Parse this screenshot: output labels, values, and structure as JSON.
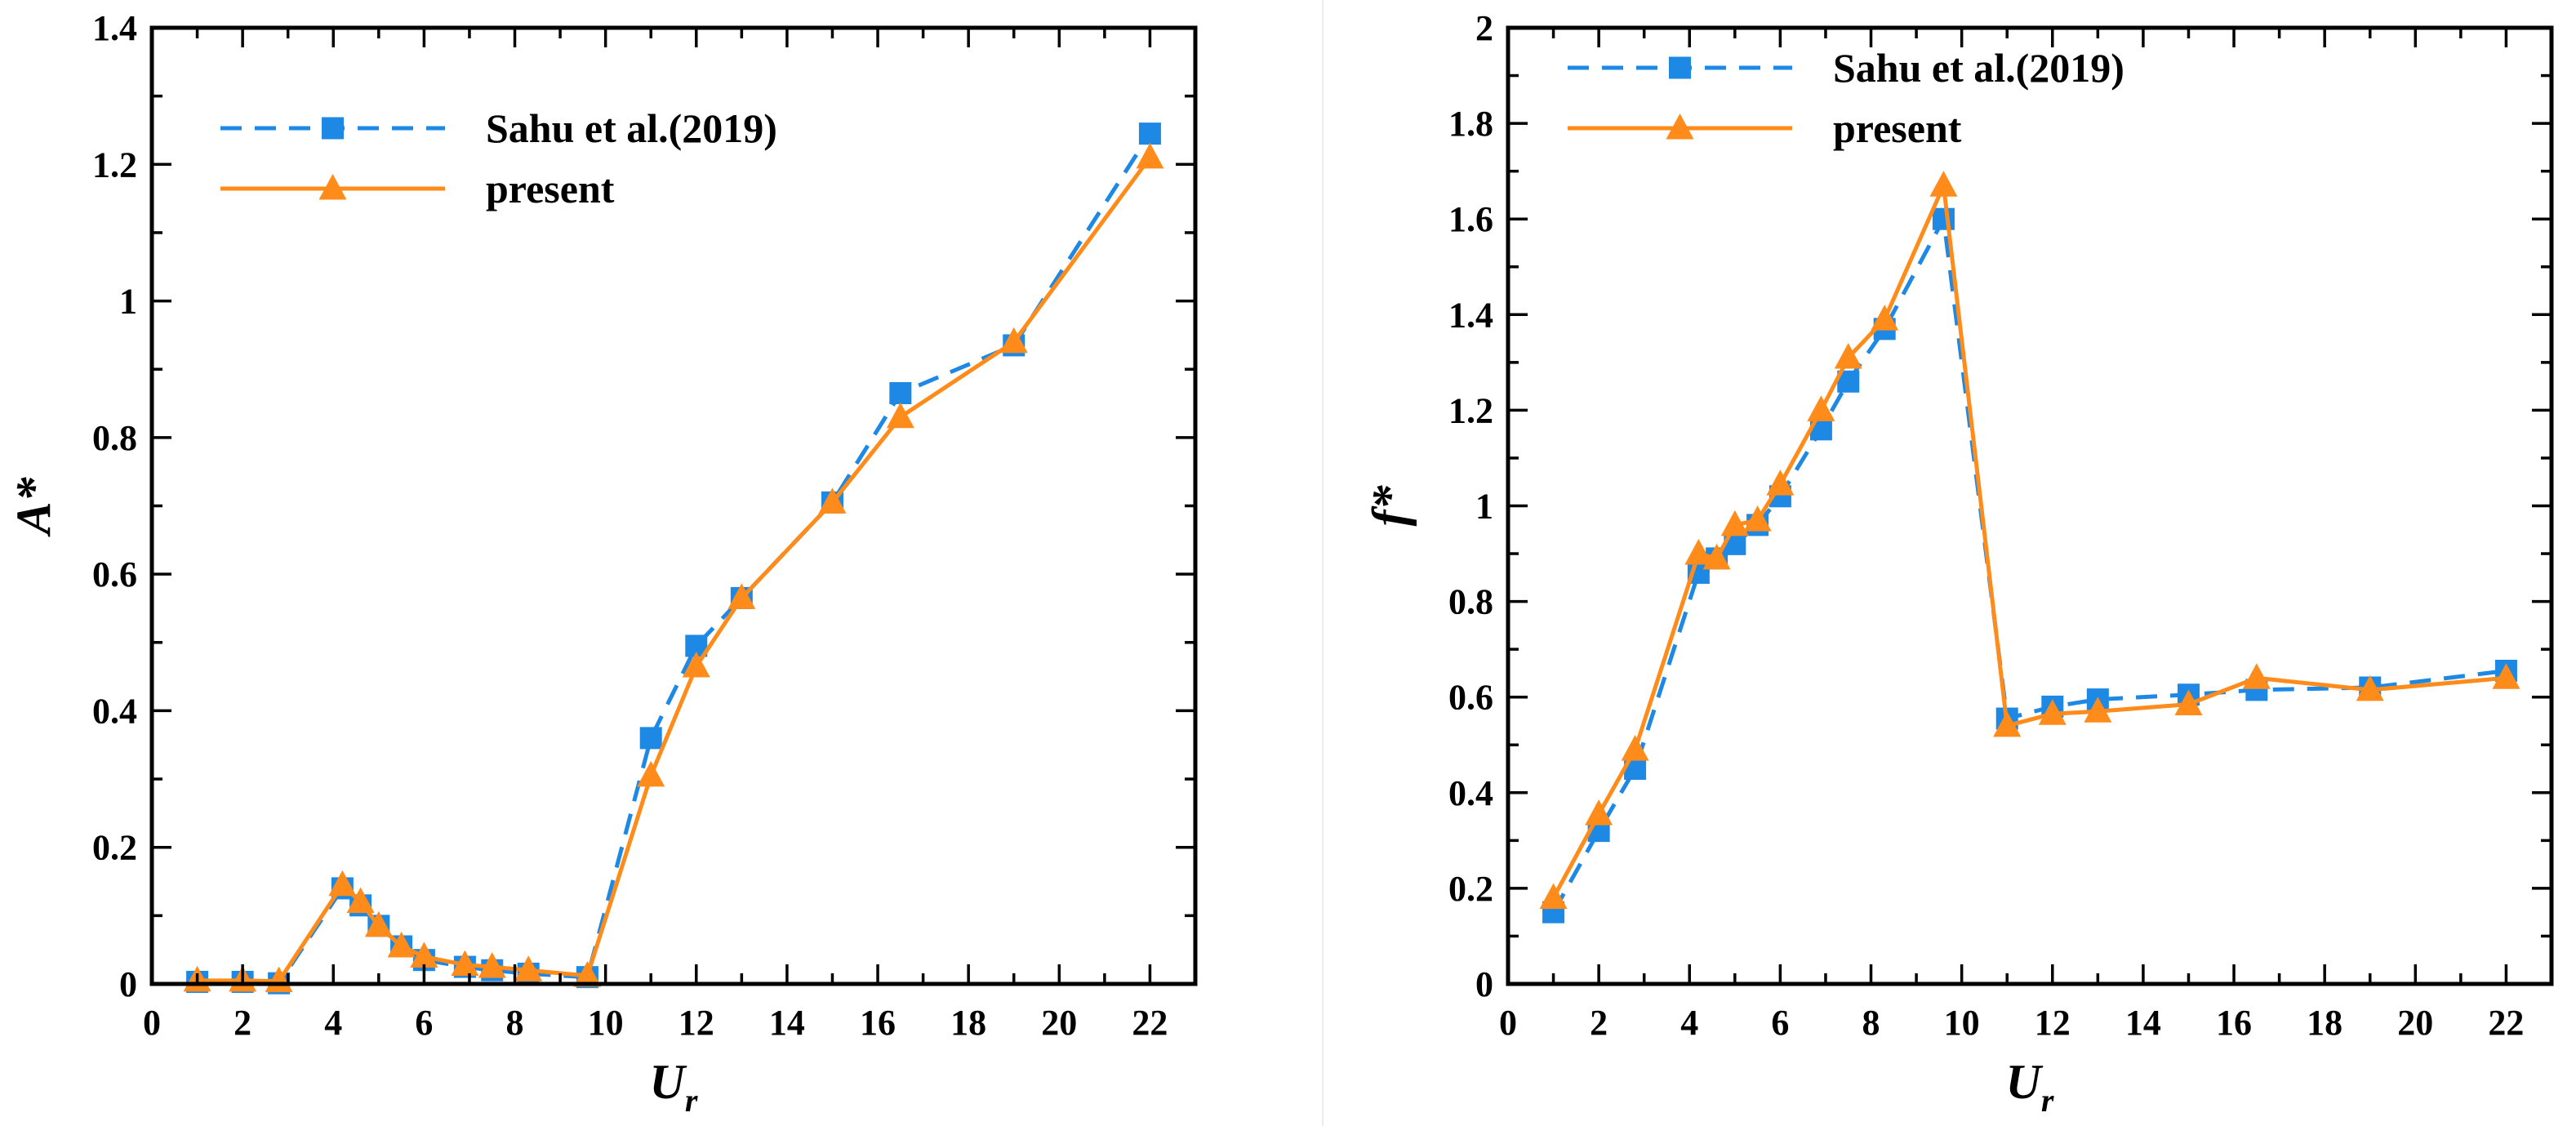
{
  "chart_data": [
    {
      "type": "line",
      "title": "",
      "xlabel": "U",
      "xlabel_sub": "r",
      "ylabel": "A*",
      "xlim": [
        0,
        23
      ],
      "ylim": [
        0,
        1.4
      ],
      "xticks": [
        "0",
        "2",
        "4",
        "6",
        "8",
        "10",
        "12",
        "14",
        "16",
        "18",
        "20",
        "22"
      ],
      "yticks": [
        "0",
        "0.2",
        "0.4",
        "0.6",
        "0.8",
        "1",
        "1.2",
        "1.4"
      ],
      "grid": false,
      "legend_position": "top-left",
      "series": [
        {
          "name": "Sahu et al.(2019)",
          "color": "#1e88e5",
          "line": "dashed",
          "marker": "square",
          "x": [
            1,
            2,
            2.8,
            4.2,
            4.6,
            5,
            5.5,
            6,
            6.9,
            7.5,
            8.3,
            9.6,
            11,
            12,
            13,
            15,
            16.5,
            19,
            22
          ],
          "y": [
            0.003,
            0.003,
            0.001,
            0.14,
            0.115,
            0.085,
            0.055,
            0.035,
            0.025,
            0.02,
            0.015,
            0.01,
            0.36,
            0.495,
            0.565,
            0.705,
            0.865,
            0.935,
            1.245
          ]
        },
        {
          "name": "present",
          "color": "#ff8c1a",
          "line": "solid",
          "marker": "triangle",
          "x": [
            1,
            2,
            2.8,
            4.2,
            4.6,
            5,
            5.5,
            6,
            6.9,
            7.5,
            8.3,
            9.6,
            11,
            12,
            13,
            15,
            16.5,
            19,
            22
          ],
          "y": [
            0.005,
            0.005,
            0.004,
            0.145,
            0.12,
            0.085,
            0.055,
            0.04,
            0.028,
            0.025,
            0.02,
            0.012,
            0.305,
            0.465,
            0.565,
            0.705,
            0.83,
            0.94,
            1.21
          ]
        }
      ]
    },
    {
      "type": "line",
      "title": "",
      "xlabel": "U",
      "xlabel_sub": "r",
      "ylabel": "f*",
      "xlim": [
        0,
        23
      ],
      "ylim": [
        0,
        2
      ],
      "xticks": [
        "0",
        "2",
        "4",
        "6",
        "8",
        "10",
        "12",
        "14",
        "16",
        "18",
        "20",
        "22"
      ],
      "yticks": [
        "0",
        "0.2",
        "0.4",
        "0.6",
        "0.8",
        "1",
        "1.2",
        "1.4",
        "1.6",
        "1.8",
        "2"
      ],
      "grid": false,
      "legend_position": "top-left",
      "series": [
        {
          "name": "Sahu et al.(2019)",
          "color": "#1e88e5",
          "line": "dashed",
          "marker": "square",
          "x": [
            1,
            2,
            2.8,
            4.2,
            4.6,
            5,
            5.5,
            6,
            6.9,
            7.5,
            8.3,
            9.6,
            11,
            12,
            13,
            15,
            16.5,
            19,
            22
          ],
          "y": [
            0.15,
            0.32,
            0.45,
            0.86,
            0.89,
            0.92,
            0.96,
            1.02,
            1.16,
            1.26,
            1.37,
            1.6,
            0.555,
            0.58,
            0.595,
            0.605,
            0.615,
            0.62,
            0.655
          ]
        },
        {
          "name": "present",
          "color": "#ff8c1a",
          "line": "solid",
          "marker": "triangle",
          "x": [
            1,
            2,
            2.8,
            4.2,
            4.6,
            5,
            5.5,
            6,
            6.9,
            7.5,
            8.3,
            9.6,
            11,
            12,
            13,
            15,
            16.5,
            19,
            22
          ],
          "y": [
            0.18,
            0.355,
            0.49,
            0.9,
            0.89,
            0.96,
            0.97,
            1.045,
            1.2,
            1.31,
            1.39,
            1.67,
            0.54,
            0.565,
            0.57,
            0.585,
            0.64,
            0.615,
            0.64
          ]
        }
      ]
    }
  ]
}
